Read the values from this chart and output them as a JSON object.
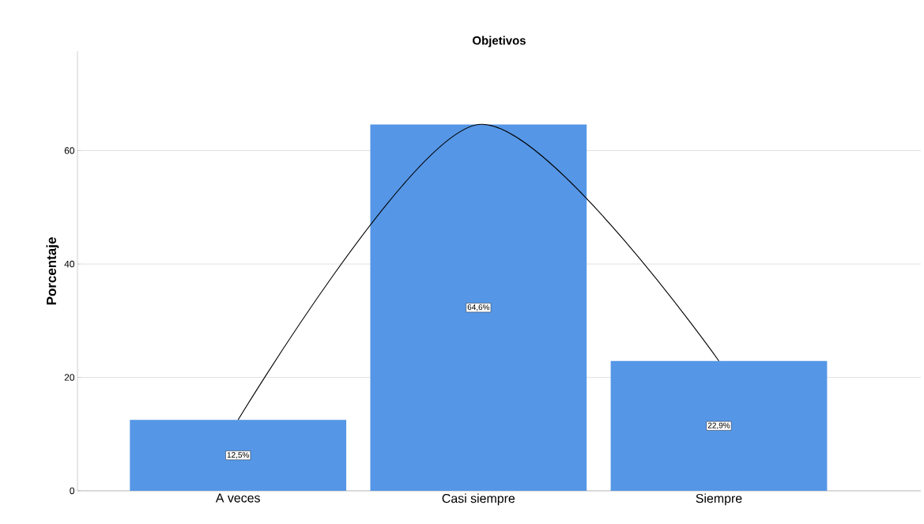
{
  "chart_data": {
    "type": "bar",
    "title": "Objetivos",
    "ylabel": "Porcentaje",
    "categories": [
      "A veces",
      "Casi siempre",
      "Siempre"
    ],
    "series": [
      {
        "color": "#5596e6",
        "values": [
          12.5,
          64.6,
          22.9
        ],
        "value_labels": [
          "12,5%",
          "64,6%",
          "22,9%"
        ]
      },
      {
        "type": "line",
        "color": "#000000",
        "values": [
          12.5,
          64.6,
          22.9
        ]
      }
    ],
    "ylim": [
      0,
      77.5
    ],
    "yticks": [
      0,
      20,
      40,
      60
    ],
    "grid": "y"
  }
}
